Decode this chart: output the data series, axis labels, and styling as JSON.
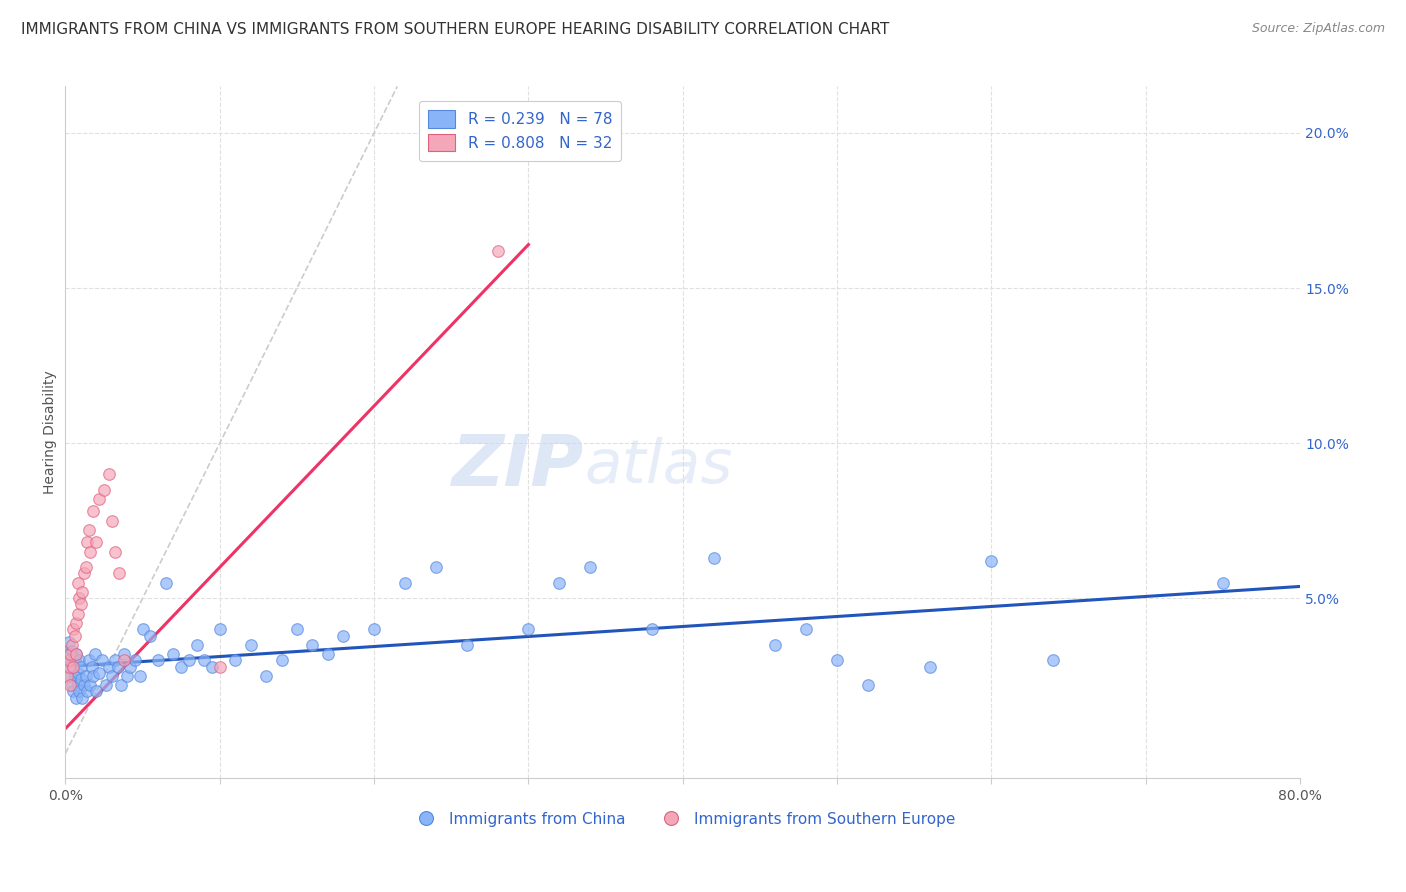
{
  "title": "IMMIGRANTS FROM CHINA VS IMMIGRANTS FROM SOUTHERN EUROPE HEARING DISABILITY CORRELATION CHART",
  "source": "Source: ZipAtlas.com",
  "ylabel": "Hearing Disability",
  "xlim": [
    0.0,
    0.8
  ],
  "ylim": [
    -0.008,
    0.215
  ],
  "yticks_right": [
    0.05,
    0.1,
    0.15,
    0.2
  ],
  "ytickslabels_right": [
    "5.0%",
    "10.0%",
    "15.0%",
    "20.0%"
  ],
  "china_color": "#8ab4f8",
  "china_edge": "#5588dd",
  "se_color": "#f4a7b9",
  "se_edge": "#e06080",
  "trend_china_color": "#2255bb",
  "trend_se_color": "#ee3366",
  "diag_color": "#cccccc",
  "legend_r_china": "R = 0.239",
  "legend_n_china": "N = 78",
  "legend_r_se": "R = 0.808",
  "legend_n_se": "N = 32",
  "legend_label_china": "Immigrants from China",
  "legend_label_se": "Immigrants from Southern Europe",
  "watermark_zip": "ZIP",
  "watermark_atlas": "atlas",
  "background_color": "#ffffff",
  "grid_color": "#e0e0e0",
  "china_x": [
    0.001,
    0.002,
    0.002,
    0.003,
    0.003,
    0.004,
    0.004,
    0.005,
    0.005,
    0.006,
    0.006,
    0.007,
    0.007,
    0.008,
    0.008,
    0.009,
    0.009,
    0.01,
    0.01,
    0.011,
    0.012,
    0.013,
    0.014,
    0.015,
    0.016,
    0.017,
    0.018,
    0.019,
    0.02,
    0.022,
    0.024,
    0.026,
    0.028,
    0.03,
    0.032,
    0.034,
    0.036,
    0.038,
    0.04,
    0.042,
    0.045,
    0.048,
    0.05,
    0.055,
    0.06,
    0.065,
    0.07,
    0.075,
    0.08,
    0.085,
    0.09,
    0.095,
    0.1,
    0.11,
    0.12,
    0.13,
    0.14,
    0.15,
    0.16,
    0.17,
    0.18,
    0.2,
    0.22,
    0.24,
    0.26,
    0.3,
    0.32,
    0.34,
    0.38,
    0.42,
    0.46,
    0.48,
    0.5,
    0.52,
    0.56,
    0.6,
    0.64,
    0.75
  ],
  "china_y": [
    0.032,
    0.028,
    0.036,
    0.025,
    0.03,
    0.022,
    0.033,
    0.02,
    0.028,
    0.025,
    0.03,
    0.018,
    0.032,
    0.022,
    0.026,
    0.02,
    0.03,
    0.024,
    0.028,
    0.018,
    0.022,
    0.025,
    0.02,
    0.03,
    0.022,
    0.028,
    0.025,
    0.032,
    0.02,
    0.026,
    0.03,
    0.022,
    0.028,
    0.025,
    0.03,
    0.028,
    0.022,
    0.032,
    0.025,
    0.028,
    0.03,
    0.025,
    0.04,
    0.038,
    0.03,
    0.055,
    0.032,
    0.028,
    0.03,
    0.035,
    0.03,
    0.028,
    0.04,
    0.03,
    0.035,
    0.025,
    0.03,
    0.04,
    0.035,
    0.032,
    0.038,
    0.04,
    0.055,
    0.06,
    0.035,
    0.04,
    0.055,
    0.06,
    0.04,
    0.063,
    0.035,
    0.04,
    0.03,
    0.022,
    0.028,
    0.062,
    0.03,
    0.055
  ],
  "se_x": [
    0.001,
    0.002,
    0.002,
    0.003,
    0.003,
    0.004,
    0.005,
    0.005,
    0.006,
    0.007,
    0.007,
    0.008,
    0.008,
    0.009,
    0.01,
    0.011,
    0.012,
    0.013,
    0.014,
    0.015,
    0.016,
    0.018,
    0.02,
    0.022,
    0.025,
    0.028,
    0.03,
    0.032,
    0.035,
    0.038,
    0.1,
    0.28
  ],
  "se_y": [
    0.025,
    0.028,
    0.03,
    0.022,
    0.032,
    0.035,
    0.028,
    0.04,
    0.038,
    0.032,
    0.042,
    0.045,
    0.055,
    0.05,
    0.048,
    0.052,
    0.058,
    0.06,
    0.068,
    0.072,
    0.065,
    0.078,
    0.068,
    0.082,
    0.085,
    0.09,
    0.075,
    0.065,
    0.058,
    0.03,
    0.028,
    0.162
  ],
  "title_fontsize": 11,
  "source_fontsize": 9,
  "axis_label_fontsize": 10,
  "tick_fontsize": 10,
  "legend_fontsize": 11,
  "watermark_fontsize": 52
}
